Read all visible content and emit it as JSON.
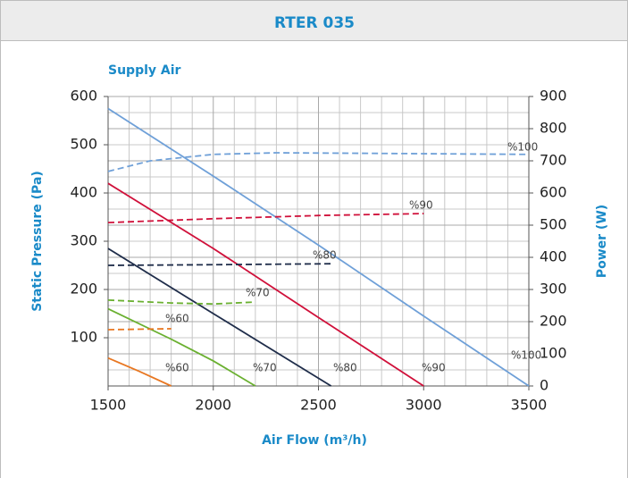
{
  "chart_data": {
    "type": "line",
    "title": "RTER 035",
    "subtitle": "Supply Air",
    "x_label": "Air Flow (m³/h)",
    "y_label": "Static Pressure (Pa)",
    "y2_label": "Power (W)",
    "xlim": [
      1500,
      3500
    ],
    "xticks": [
      1500,
      2000,
      2500,
      3000,
      3500
    ],
    "ylim": [
      0,
      600
    ],
    "yticks": [
      100,
      200,
      300,
      400,
      500,
      600
    ],
    "y2lim": [
      0,
      900
    ],
    "y2ticks": [
      0,
      100,
      200,
      300,
      400,
      500,
      600,
      700,
      800,
      900
    ],
    "grid": true,
    "series": [
      {
        "name": "%100",
        "color": "#6fa0d8",
        "axis": "y",
        "x": [
          1500,
          2000,
          2500,
          3000,
          3500
        ],
        "values": [
          575,
          435,
          292,
          145,
          0
        ]
      },
      {
        "name": "%90",
        "color": "#d0103a",
        "axis": "y",
        "x": [
          1500,
          2000,
          2500,
          3000
        ],
        "values": [
          420,
          285,
          142,
          0
        ]
      },
      {
        "name": "%80",
        "color": "#1f2d4a",
        "axis": "y",
        "x": [
          1500,
          2000,
          2560
        ],
        "values": [
          285,
          150,
          0
        ]
      },
      {
        "name": "%70",
        "color": "#6ab030",
        "axis": "y",
        "x": [
          1500,
          1800,
          2000,
          2200
        ],
        "values": [
          160,
          97,
          52,
          0
        ]
      },
      {
        "name": "%60",
        "color": "#e87722",
        "axis": "y",
        "x": [
          1500,
          1650,
          1800
        ],
        "values": [
          58,
          30,
          0
        ]
      },
      {
        "name": "%100",
        "color": "#6fa0d8",
        "axis": "y2",
        "x": [
          1500,
          1700,
          2000,
          2300,
          2800,
          3500
        ],
        "values": [
          667,
          700,
          720,
          725,
          723,
          720
        ]
      },
      {
        "name": "%90",
        "color": "#d0103a",
        "axis": "y2",
        "x": [
          1500,
          2000,
          2500,
          3000
        ],
        "values": [
          508,
          520,
          530,
          536
        ]
      },
      {
        "name": "%80",
        "color": "#1f2d4a",
        "axis": "y2",
        "x": [
          1500,
          2000,
          2560
        ],
        "values": [
          375,
          377,
          380
        ]
      },
      {
        "name": "%70",
        "color": "#6ab030",
        "axis": "y2",
        "x": [
          1500,
          1800,
          2000,
          2200
        ],
        "values": [
          267,
          258,
          255,
          261
        ]
      },
      {
        "name": "%60",
        "color": "#e87722",
        "axis": "y2",
        "x": [
          1500,
          1800
        ],
        "values": [
          175,
          178
        ]
      }
    ]
  }
}
